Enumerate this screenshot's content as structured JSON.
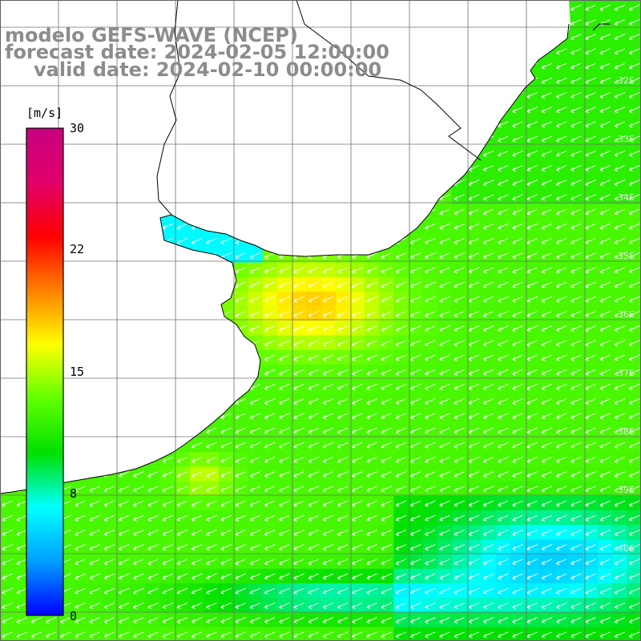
{
  "title": {
    "line1": "modelo GEFS-WAVE (NCEP)",
    "line2": "forecast date: 2024-02-05 12:00:00",
    "line3": "valid date: 2024-02-10 00:00:00"
  },
  "colorbar": {
    "unit": "[m/s]",
    "min": 0,
    "max": 30,
    "ticks": [
      "30",
      "22",
      "15",
      "8",
      "0"
    ],
    "tick_values": [
      30,
      22,
      15,
      8,
      0
    ],
    "stops": [
      "#0000ff",
      "#00a0ff",
      "#00ffff",
      "#00e000",
      "#60ff00",
      "#ffff00",
      "#ff8000",
      "#ff0000",
      "#e0006a",
      "#c80080"
    ]
  },
  "lat_labels": [
    "32S",
    "33S",
    "34S",
    "35S",
    "36S",
    "37S",
    "38S",
    "39S",
    "40S"
  ],
  "colors": {
    "land": "#ffffff",
    "grid": "#707070",
    "coast": "#000000",
    "arrow": "#ffffff",
    "title": "#8c8c8c"
  },
  "wind": {
    "direction": "southwest",
    "description_hint": "arrows point toward SW over most of domain"
  }
}
